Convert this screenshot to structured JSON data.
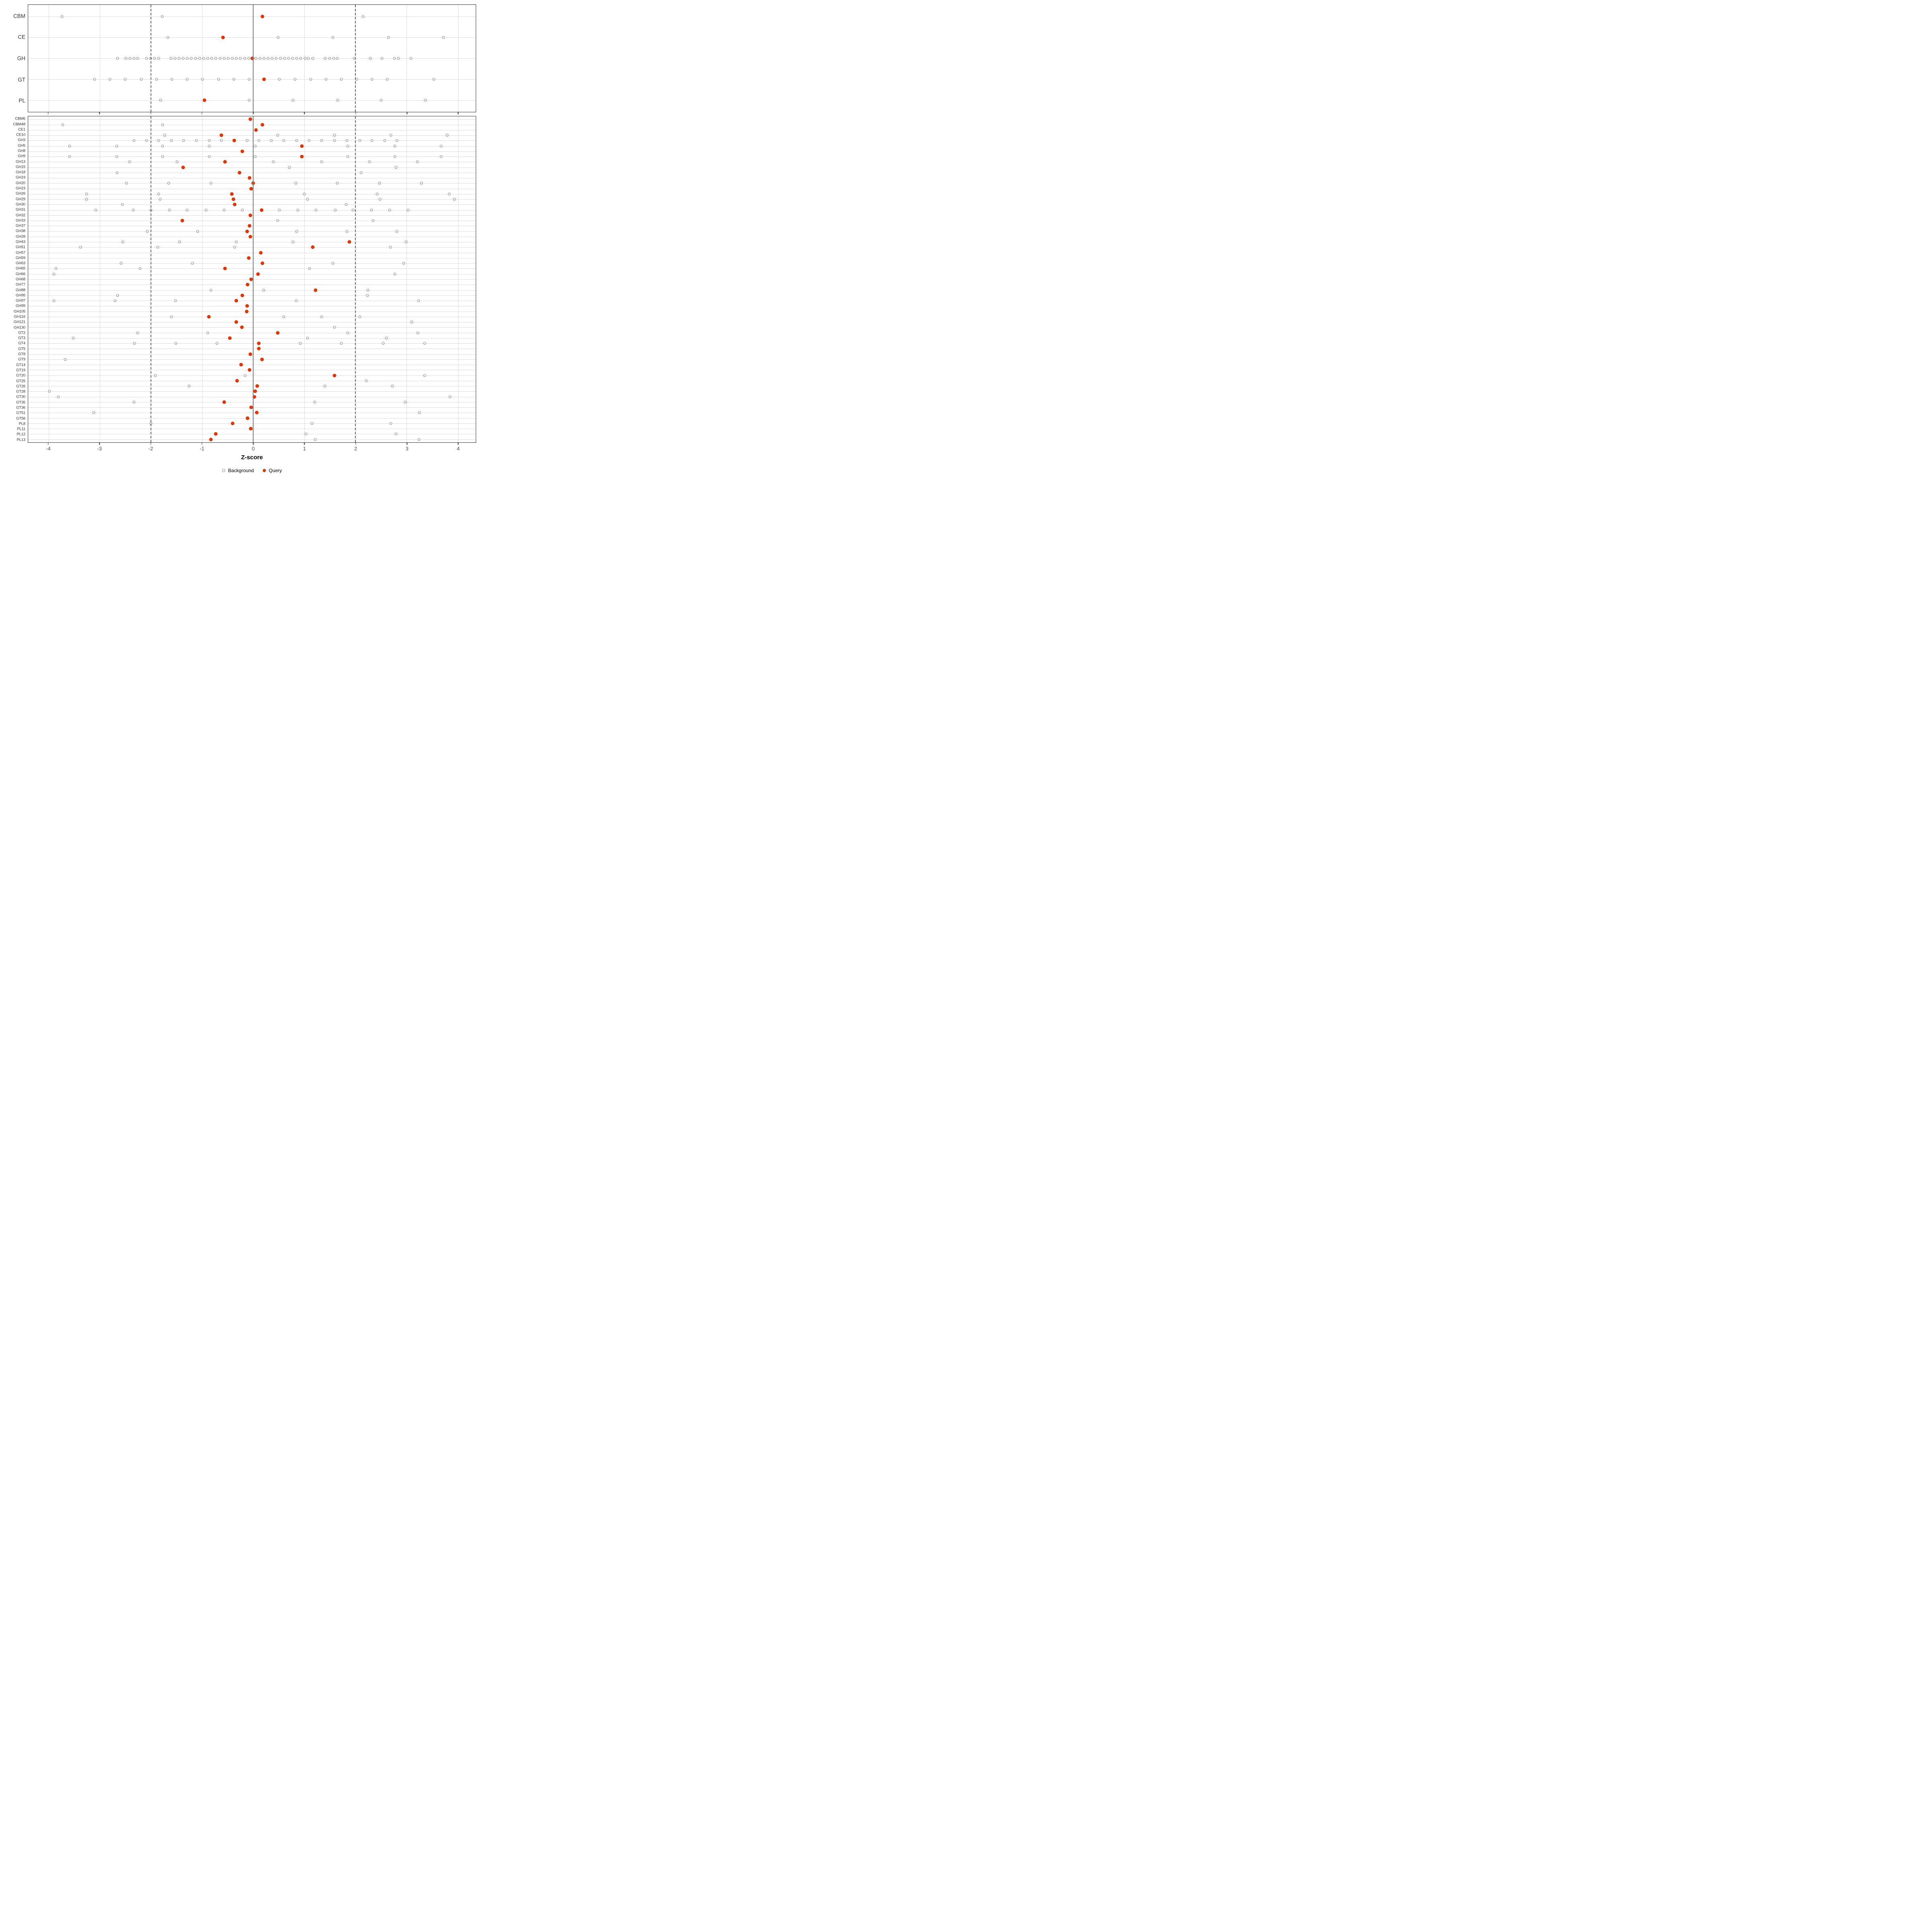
{
  "axis": {
    "label": "Z-score",
    "ticks": [
      -4,
      -3,
      -2,
      -1,
      0,
      1,
      2,
      3,
      4
    ],
    "xmin": -4.4,
    "xmax": 4.35,
    "zero_line": 0,
    "dashed_lines": [
      -2,
      2
    ]
  },
  "colors": {
    "query": "#d6390a",
    "background_stroke": "#8a8a8a",
    "gridline": "#dcdcdc",
    "zero_line": "#808080",
    "dashed_line": "#666666",
    "panel_border": "#333333",
    "text": "#333333"
  },
  "legend": {
    "items": [
      {
        "label": "Background",
        "type": "open"
      },
      {
        "label": "Query",
        "type": "filled"
      }
    ]
  },
  "chart_data": [
    {
      "type": "scatter",
      "name": "category-panel",
      "xlabel": "Z-score",
      "xlim": [
        -4.4,
        4.35
      ],
      "rows": [
        {
          "label": "CBM",
          "background": [
            -3.74,
            -1.78,
            2.15
          ],
          "query": 0.18
        },
        {
          "label": "CE",
          "background": [
            -1.67,
            0.49,
            1.56,
            2.64,
            3.72
          ],
          "query": -0.59
        },
        {
          "label": "GH",
          "background": [
            -2.65,
            -2.49,
            -2.41,
            -2.33,
            -2.26,
            -2.09,
            -2.01,
            -1.93,
            -1.85,
            -1.61,
            -1.53,
            -1.45,
            -1.37,
            -1.29,
            -1.21,
            -1.13,
            -1.05,
            -0.97,
            -0.89,
            -0.81,
            -0.73,
            -0.65,
            -0.57,
            -0.49,
            -0.41,
            -0.33,
            -0.25,
            -0.17,
            -0.09,
            0.05,
            0.13,
            0.21,
            0.29,
            0.37,
            0.45,
            0.53,
            0.61,
            0.69,
            0.77,
            0.85,
            0.93,
            1.01,
            1.08,
            1.16,
            1.41,
            1.49,
            1.57,
            1.64,
            1.97,
            2.29,
            2.52,
            2.76,
            2.84,
            3.08
          ],
          "query": -0.02
        },
        {
          "label": "GT",
          "background": [
            -3.1,
            -2.8,
            -2.5,
            -2.19,
            -1.89,
            -1.59,
            -1.29,
            -0.99,
            -0.68,
            -0.38,
            -0.08,
            0.51,
            0.82,
            1.12,
            1.42,
            1.72,
            2.02,
            2.32,
            2.62,
            3.53
          ],
          "query": 0.21
        },
        {
          "label": "PL",
          "background": [
            -1.81,
            -0.08,
            0.78,
            1.65,
            2.5,
            3.37
          ],
          "query": -0.95
        }
      ]
    },
    {
      "type": "scatter",
      "name": "family-panel",
      "xlabel": "Z-score",
      "xlim": [
        -4.4,
        4.35
      ],
      "rows": [
        {
          "label": "CBM6",
          "background": [],
          "query": -0.06
        },
        {
          "label": "CBM48",
          "background": [
            -3.72,
            -1.77
          ],
          "query": 0.18
        },
        {
          "label": "CE1",
          "background": [],
          "query": 0.05
        },
        {
          "label": "CE10",
          "background": [
            -1.73,
            0.48,
            1.59,
            2.69,
            3.79
          ],
          "query": -0.62
        },
        {
          "label": "GH3",
          "background": [
            -2.33,
            -2.09,
            -1.85,
            -1.6,
            -1.36,
            -1.11,
            -0.86,
            -0.62,
            -0.12,
            0.11,
            0.35,
            0.6,
            0.85,
            1.09,
            1.34,
            1.59,
            1.83,
            2.08,
            2.32,
            2.57,
            2.81
          ],
          "query": -0.37
        },
        {
          "label": "GH5",
          "background": [
            -3.59,
            -2.67,
            -1.77,
            -0.86,
            0.04,
            1.85,
            2.77,
            3.67
          ],
          "query": 0.95
        },
        {
          "label": "GH8",
          "background": [],
          "query": -0.21
        },
        {
          "label": "GH9",
          "background": [
            -3.59,
            -2.67,
            -1.77,
            -0.86,
            0.04,
            1.85,
            2.77,
            3.67
          ],
          "query": 0.95
        },
        {
          "label": "GH13",
          "background": [
            -2.42,
            -1.49,
            0.39,
            1.34,
            2.27,
            3.21
          ],
          "query": -0.55
        },
        {
          "label": "GH15",
          "background": [
            0.71,
            2.79
          ],
          "query": -1.37
        },
        {
          "label": "GH18",
          "background": [
            -2.66,
            2.11
          ],
          "query": -0.27
        },
        {
          "label": "GH19",
          "background": [],
          "query": -0.07
        },
        {
          "label": "GH20",
          "background": [
            -2.48,
            -1.65,
            -0.83,
            0.83,
            1.64,
            2.47,
            3.29
          ],
          "query": 0.0
        },
        {
          "label": "GH23",
          "background": [],
          "query": -0.04
        },
        {
          "label": "GH26",
          "background": [
            -3.26,
            -1.85,
            1.0,
            2.42,
            3.83
          ],
          "query": -0.42
        },
        {
          "label": "GH29",
          "background": [
            -3.26,
            -1.82,
            1.06,
            2.48,
            3.93
          ],
          "query": -0.39
        },
        {
          "label": "GH30",
          "background": [
            -2.56,
            1.82
          ],
          "query": -0.36
        },
        {
          "label": "GH31",
          "background": [
            -3.08,
            -2.35,
            -2.0,
            -1.64,
            -1.29,
            -0.92,
            -0.57,
            -0.21,
            0.51,
            0.87,
            1.23,
            1.6,
            1.95,
            2.31,
            2.67,
            3.03
          ],
          "query": 0.16
        },
        {
          "label": "GH32",
          "background": [],
          "query": -0.06
        },
        {
          "label": "GH33",
          "background": [
            0.48,
            2.34
          ],
          "query": -1.39
        },
        {
          "label": "GH37",
          "background": [],
          "query": -0.07
        },
        {
          "label": "GH38",
          "background": [
            -2.07,
            -1.09,
            0.85,
            1.83,
            2.81
          ],
          "query": -0.12
        },
        {
          "label": "GH39",
          "background": [],
          "query": -0.06
        },
        {
          "label": "GH43",
          "background": [
            -2.55,
            -1.44,
            -0.33,
            0.78,
            2.99
          ],
          "query": 1.88
        },
        {
          "label": "GH51",
          "background": [
            -3.38,
            -1.87,
            -0.36,
            2.68
          ],
          "query": 1.16
        },
        {
          "label": "GH57",
          "background": [],
          "query": 0.15
        },
        {
          "label": "GH59",
          "background": [],
          "query": -0.09
        },
        {
          "label": "GH63",
          "background": [
            -2.58,
            -1.19,
            1.56,
            2.94
          ],
          "query": 0.18
        },
        {
          "label": "GH65",
          "background": [
            -3.86,
            -2.21,
            1.1
          ],
          "query": -0.55
        },
        {
          "label": "GH66",
          "background": [
            -3.9,
            2.77
          ],
          "query": 0.09
        },
        {
          "label": "GH68",
          "background": [],
          "query": -0.04
        },
        {
          "label": "GH77",
          "background": [],
          "query": -0.11
        },
        {
          "label": "GH88",
          "background": [
            -0.83,
            0.2,
            2.24
          ],
          "query": 1.22
        },
        {
          "label": "GH95",
          "background": [
            -2.65,
            2.23
          ],
          "query": -0.21
        },
        {
          "label": "GH97",
          "background": [
            -3.9,
            -2.7,
            -1.52,
            0.84,
            3.23
          ],
          "query": -0.33
        },
        {
          "label": "GH99",
          "background": [],
          "query": -0.12
        },
        {
          "label": "GH105",
          "background": [],
          "query": -0.13
        },
        {
          "label": "GH116",
          "background": [
            -1.6,
            0.6,
            1.34,
            2.08
          ],
          "query": -0.87
        },
        {
          "label": "GH121",
          "background": [
            3.1
          ],
          "query": -0.33
        },
        {
          "label": "GH130",
          "background": [
            1.59
          ],
          "query": -0.22
        },
        {
          "label": "GT2",
          "background": [
            -2.26,
            -0.89,
            1.85,
            3.22
          ],
          "query": 0.48
        },
        {
          "label": "GT3",
          "background": [
            -3.52,
            1.06,
            2.6
          ],
          "query": -0.46
        },
        {
          "label": "GT4",
          "background": [
            -2.32,
            -1.51,
            -0.71,
            0.92,
            1.72,
            2.54,
            3.35
          ],
          "query": 0.11
        },
        {
          "label": "GT5",
          "background": [],
          "query": 0.11
        },
        {
          "label": "GT8",
          "background": [],
          "query": -0.06
        },
        {
          "label": "GT9",
          "background": [
            -3.68
          ],
          "query": 0.17
        },
        {
          "label": "GT14",
          "background": [],
          "query": -0.24
        },
        {
          "label": "GT19",
          "background": [],
          "query": -0.07
        },
        {
          "label": "GT20",
          "background": [
            -1.91,
            -0.16,
            3.35
          ],
          "query": 1.59
        },
        {
          "label": "GT25",
          "background": [
            2.21
          ],
          "query": -0.32
        },
        {
          "label": "GT26",
          "background": [
            -1.25,
            1.4,
            2.72
          ],
          "query": 0.08
        },
        {
          "label": "GT28",
          "background": [
            -3.98
          ],
          "query": 0.04
        },
        {
          "label": "GT30",
          "background": [
            -3.81,
            3.85
          ],
          "query": 0.02
        },
        {
          "label": "GT35",
          "background": [
            -2.33,
            1.2,
            2.97
          ],
          "query": -0.57
        },
        {
          "label": "GT36",
          "background": [],
          "query": -0.04
        },
        {
          "label": "GT51",
          "background": [
            -3.12,
            3.25
          ],
          "query": 0.07
        },
        {
          "label": "GT56",
          "background": [],
          "query": -0.11
        },
        {
          "label": "PL8",
          "background": [
            -2.0,
            1.15,
            2.69
          ],
          "query": -0.4
        },
        {
          "label": "PL11",
          "background": [],
          "query": -0.05
        },
        {
          "label": "PL12",
          "background": [
            1.03,
            2.79
          ],
          "query": -0.73
        },
        {
          "label": "PL13",
          "background": [
            1.21,
            3.24
          ],
          "query": -0.83
        }
      ]
    }
  ]
}
